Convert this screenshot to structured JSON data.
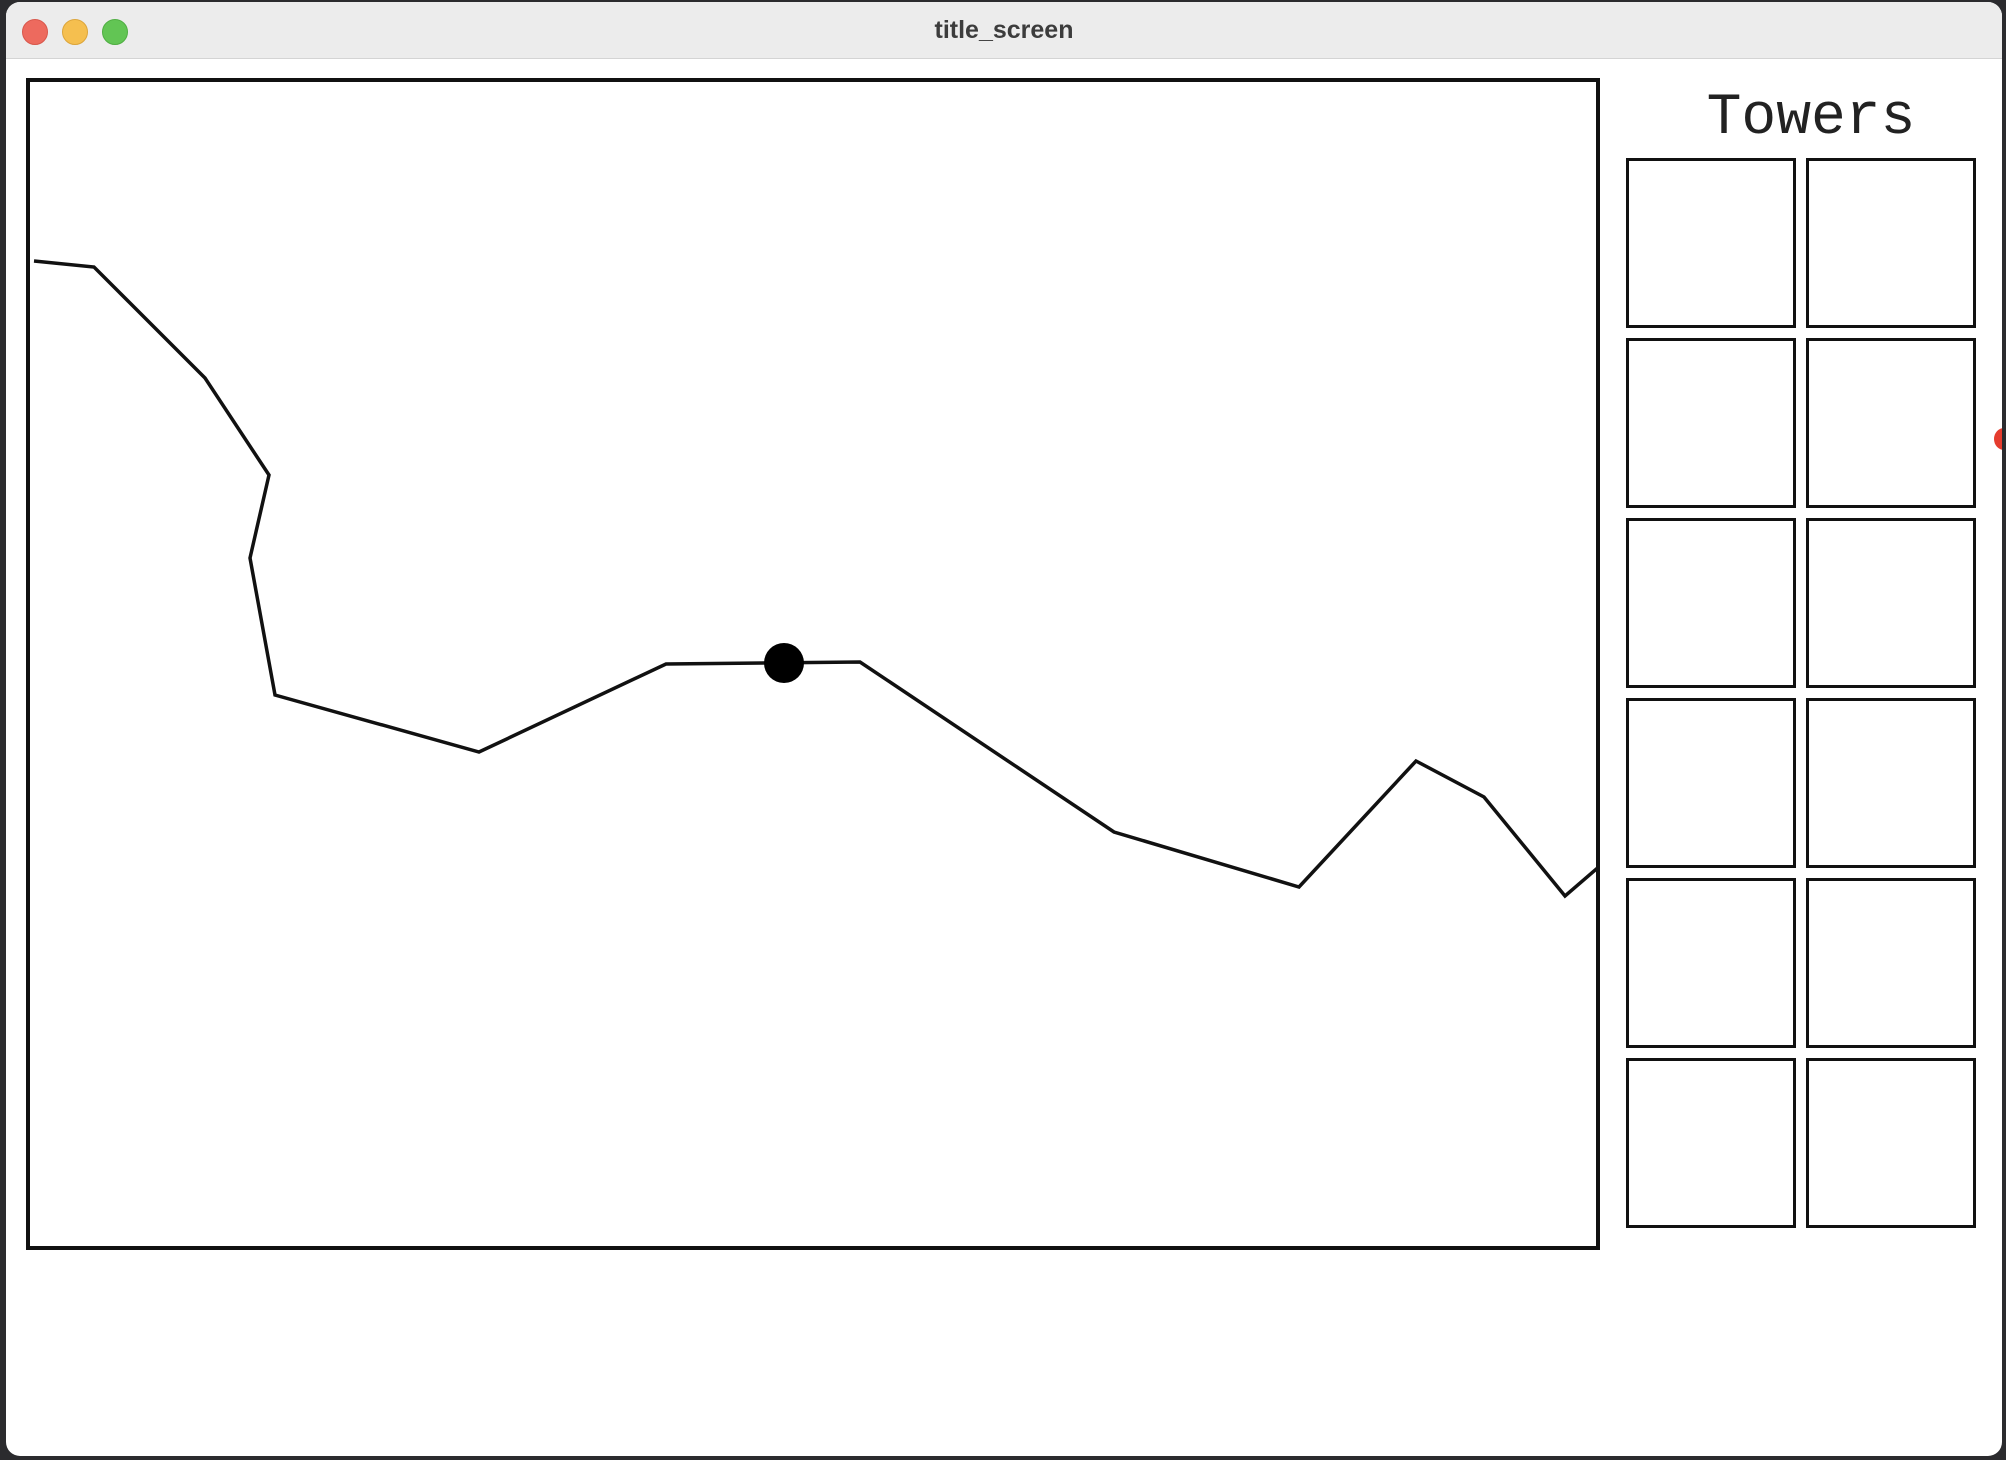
{
  "window": {
    "title": "title_screen"
  },
  "sidebar": {
    "title": "Towers",
    "slot_count": 12
  },
  "colors": {
    "path": "#111111",
    "enemy": "#000000",
    "marker": "#e53c2e",
    "background": "#ffffff"
  },
  "icons": {
    "enemy": "black-circle",
    "marker": "red-dot"
  }
}
